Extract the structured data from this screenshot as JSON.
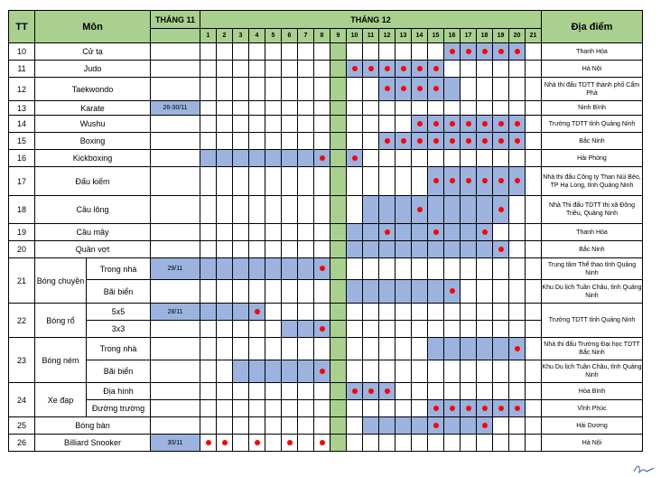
{
  "header": {
    "tt": "TT",
    "mon": "Môn",
    "thang11": "THÁNG 11",
    "thang12": "THÁNG 12",
    "diadiem": "Địa điểm",
    "days": [
      "1",
      "2",
      "3",
      "4",
      "5",
      "6",
      "7",
      "8",
      "9",
      "10",
      "11",
      "12",
      "13",
      "14",
      "15",
      "16",
      "17",
      "18",
      "19",
      "20",
      "21"
    ]
  },
  "colors": {
    "header": "#a9d08e",
    "bar": "#9bb3de",
    "marker": "#ff0000"
  },
  "rows": [
    {
      "num": "10",
      "sport": "Cử tạ",
      "nov": "",
      "blue": [
        16,
        17,
        18,
        19,
        20
      ],
      "dots": [
        16,
        17,
        18,
        19,
        20
      ],
      "location": "Thanh Hóa"
    },
    {
      "num": "11",
      "sport": "Judo",
      "nov": "",
      "blue": [
        10,
        11,
        12,
        13,
        14,
        15
      ],
      "dots": [
        10,
        11,
        12,
        13,
        14,
        15
      ],
      "location": "Hà Nội"
    },
    {
      "num": "12",
      "sport": "Taekwondo",
      "nov": "",
      "blue": [
        12,
        13,
        14,
        15,
        16
      ],
      "dots": [
        12,
        13,
        14,
        15
      ],
      "location": "Nhà thi đấu TDTT thành phố Cẩm Phả"
    },
    {
      "num": "13",
      "sport": "Karate",
      "nov": "26-30/11",
      "blue": [],
      "dots": [],
      "location": "Ninh Bình"
    },
    {
      "num": "14",
      "sport": "Wushu",
      "nov": "",
      "blue": [
        14,
        15,
        16,
        17,
        18,
        19,
        20
      ],
      "dots": [
        14,
        15,
        16,
        17,
        18,
        19,
        20
      ],
      "location": "Trường TDTT tỉnh Quảng Ninh"
    },
    {
      "num": "15",
      "sport": "Boxing",
      "nov": "",
      "blue": [
        12,
        13,
        14,
        15,
        16,
        17,
        18,
        19,
        20
      ],
      "dots": [
        12,
        13,
        14,
        15,
        16,
        17,
        18,
        19,
        20
      ],
      "location": "Bắc Ninh"
    },
    {
      "num": "16",
      "sport": "Kickboxing",
      "nov": "",
      "blue": [
        1,
        2,
        3,
        4,
        5,
        6,
        7,
        8,
        10
      ],
      "dots": [
        8,
        10
      ],
      "location": "Hải Phòng"
    },
    {
      "num": "17",
      "sport": "Đấu kiếm",
      "nov": "",
      "blue": [
        15,
        16,
        17,
        18,
        19,
        20
      ],
      "dots": [
        15,
        16,
        17,
        18,
        19,
        20
      ],
      "location": "Nhà thi đấu Công ty Than Núi Béo, TP Hạ Long, tỉnh Quảng Ninh"
    },
    {
      "num": "18",
      "sport": "Cầu lông",
      "nov": "",
      "blue": [
        11,
        12,
        13,
        14,
        15,
        16,
        17,
        18,
        19
      ],
      "dots": [
        14,
        19
      ],
      "location": "Nhà Thi đấu TDTT thị xã Đông Triều, Quảng Ninh"
    },
    {
      "num": "19",
      "sport": "Cầu mây",
      "nov": "",
      "blue": [
        10,
        11,
        12,
        13,
        14,
        15,
        16,
        17,
        18
      ],
      "dots": [
        12,
        15,
        18
      ],
      "location": "Thanh Hóa"
    },
    {
      "num": "20",
      "sport": "Quần vợt",
      "nov": "",
      "blue": [
        10,
        11,
        12,
        13,
        14,
        15,
        16,
        17,
        18,
        19
      ],
      "dots": [
        19
      ],
      "location": "Bắc Ninh"
    }
  ],
  "volleyball": {
    "num": "21",
    "sport": "Bóng chuyền",
    "rows": [
      {
        "sub": "Trong nhà",
        "nov": "29/11",
        "blue": [
          1,
          2,
          3,
          4,
          5,
          6,
          7,
          8
        ],
        "dots": [
          8
        ],
        "location": "Trung tâm Thể thao tỉnh Quảng Ninh"
      },
      {
        "sub": "Bãi biển",
        "nov": "",
        "blue": [
          10,
          11,
          12,
          13,
          14,
          15,
          16
        ],
        "dots": [
          16
        ],
        "location": "Khu Du lịch Tuần Châu, tỉnh Quảng Ninh"
      }
    ]
  },
  "basketball": {
    "num": "22",
    "sport": "Bóng rổ",
    "location": "Trường TDTT tỉnh Quảng Ninh",
    "rows": [
      {
        "sub": "5x5",
        "nov": "28/11",
        "blue": [
          1,
          2,
          3,
          4
        ],
        "dots": [
          4
        ]
      },
      {
        "sub": "3x3",
        "nov": "",
        "blue": [
          6,
          7,
          8
        ],
        "dots": [
          8
        ]
      }
    ]
  },
  "handball": {
    "num": "23",
    "sport": "Bóng ném",
    "rows": [
      {
        "sub": "Trong nhà",
        "nov": "",
        "blue": [
          15,
          16,
          17,
          18,
          19,
          20
        ],
        "dots": [
          20
        ],
        "location": "Nhà thi đấu Trường Đại học TDTT Bắc Ninh"
      },
      {
        "sub": "Bãi biển",
        "nov": "",
        "blue": [
          3,
          4,
          5,
          6,
          7,
          8
        ],
        "dots": [
          8
        ],
        "location": "Khu Du lịch Tuần Châu, tỉnh Quảng Ninh"
      }
    ]
  },
  "cycling": {
    "num": "24",
    "sport": "Xe đạp",
    "rows": [
      {
        "sub": "Địa hình",
        "nov": "",
        "blue": [
          10,
          11,
          12
        ],
        "dots": [
          10,
          11,
          12
        ],
        "location": "Hòa Bình"
      },
      {
        "sub": "Đường trường",
        "nov": "",
        "blue": [
          15,
          16,
          17,
          18,
          19,
          20
        ],
        "dots": [
          15,
          16,
          17,
          18,
          19,
          20
        ],
        "location": "Vĩnh Phúc"
      }
    ]
  },
  "rows2": [
    {
      "num": "25",
      "sport": "Bóng bàn",
      "nov": "",
      "blue": [
        11,
        12,
        13,
        14,
        15,
        16,
        17,
        18
      ],
      "dots": [
        15,
        18
      ],
      "location": "Hải Dương"
    },
    {
      "num": "26",
      "sport": "Billiard Snooker",
      "nov": "30/11",
      "blue": [],
      "dots": [
        1,
        2,
        4,
        6,
        8
      ],
      "location": "Hà Nội"
    }
  ]
}
